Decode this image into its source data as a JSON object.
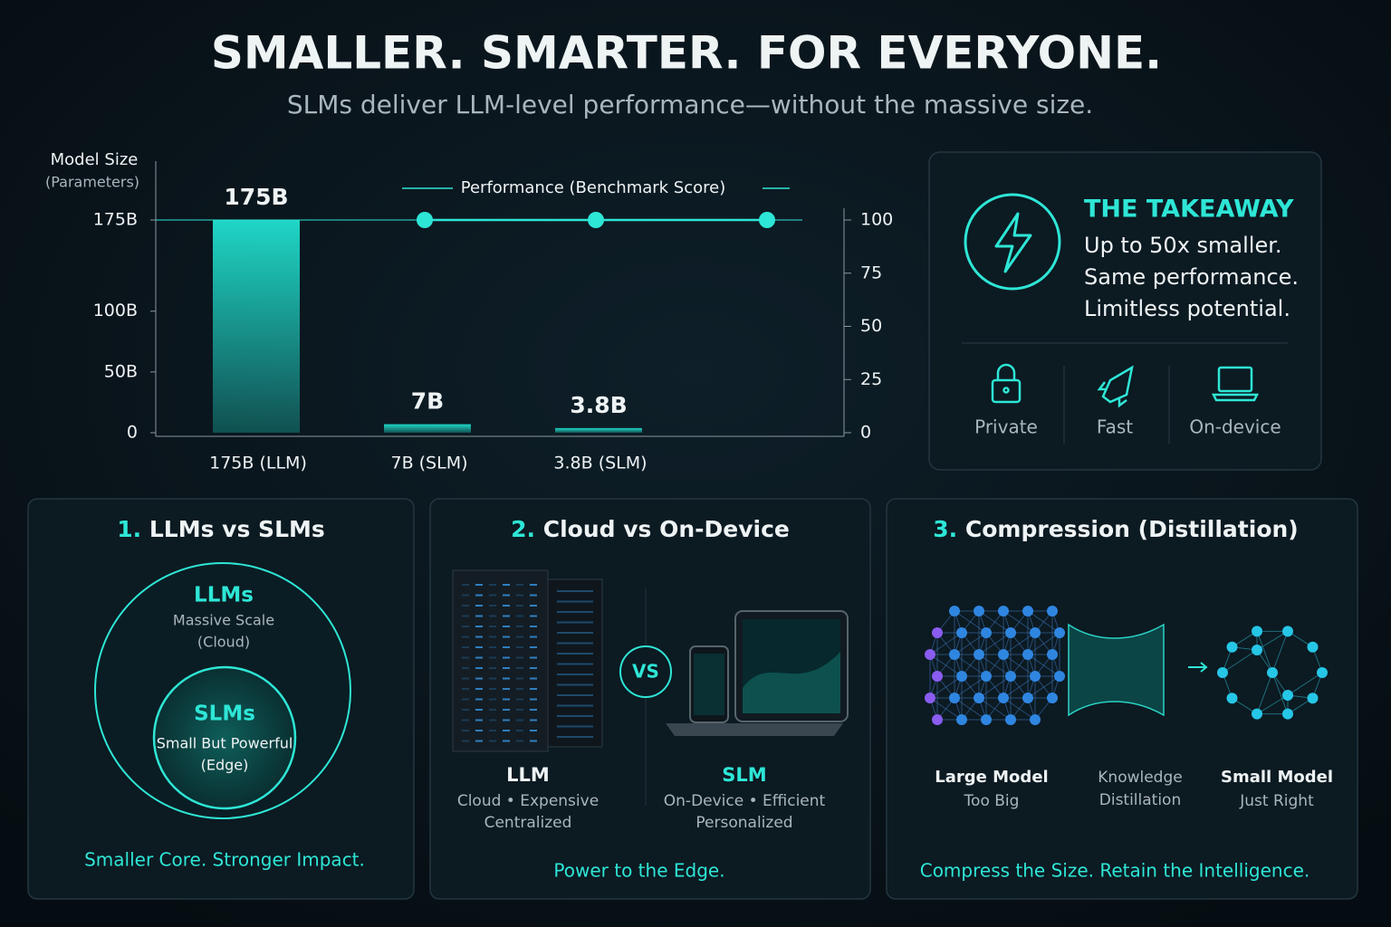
{
  "header": {
    "title": "SMALLER. SMARTER. FOR EVERYONE.",
    "subtitle": "SLMs deliver LLM-level performance—without the massive size."
  },
  "chart_data": {
    "type": "bar",
    "y_label": "Model Size",
    "y_label_sub": "(Parameters)",
    "categories": [
      "175B (LLM)",
      "7B (SLM)",
      "3.8B (SLM)"
    ],
    "series": [
      {
        "color": "#1fd6c6",
        "values": [
          175,
          7,
          3.8
        ],
        "value_labels": [
          "175B",
          "7B",
          "3.8B"
        ]
      },
      {
        "name": "Performance (Benchmark Score)",
        "type": "line",
        "axis": "y2",
        "color": "#2ee6d6",
        "values": [
          100,
          100,
          100
        ]
      }
    ],
    "ylim": [
      0,
      175
    ],
    "yticks": [
      0,
      {
        "value": 50,
        "label": "50B"
      },
      {
        "value": 100,
        "label": "100B"
      },
      {
        "value": 175,
        "label": "175B"
      }
    ],
    "y2lim": [
      0,
      100
    ],
    "y2ticks": [
      0,
      25,
      50,
      75,
      100
    ],
    "grid": false,
    "legend": "top"
  },
  "takeaway": {
    "title": "THE TAKEAWAY",
    "lines": [
      "Up to 50x smaller.",
      "Same performance.",
      "Limitless potential."
    ],
    "features": [
      "Private",
      "Fast",
      "On-device"
    ]
  },
  "panels": [
    {
      "number": "1.",
      "title": "LLMs vs SLMs",
      "outer_title": "LLMs",
      "outer_lines": [
        "Massive Scale",
        "(Cloud)"
      ],
      "inner_title": "SLMs",
      "inner_lines": [
        "Small But Powerful",
        "(Edge)"
      ],
      "footer": "Smaller Core. Stronger Impact."
    },
    {
      "number": "2.",
      "title": "Cloud vs On-Device",
      "vs": "VS",
      "left_title": "LLM",
      "left_lines": [
        "Cloud • Expensive",
        "Centralized"
      ],
      "right_title": "SLM",
      "right_lines": [
        "On-Device • Efficient",
        "Personalized"
      ],
      "footer": "Power to the Edge."
    },
    {
      "number": "3.",
      "title": "Compression (Distillation)",
      "left_title": "Large Model",
      "left_sub": "Too Big",
      "middle_lines": [
        "Knowledge",
        "Distillation"
      ],
      "right_title": "Small Model",
      "right_sub": "Just Right",
      "footer": "Compress the Size. Retain the Intelligence."
    }
  ]
}
